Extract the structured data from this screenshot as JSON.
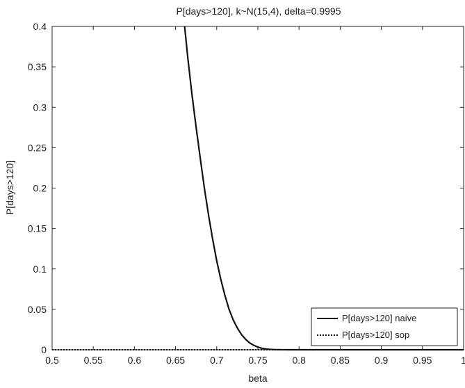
{
  "chart_data": {
    "type": "line",
    "title": "P[days>120], k~N(15,4), delta=0.9995",
    "xlabel": "beta",
    "ylabel": "P[days>120]",
    "xlim": [
      0.5,
      1.0
    ],
    "ylim": [
      0,
      0.4
    ],
    "x_ticks": [
      "0.5",
      "0.55",
      "0.6",
      "0.65",
      "0.7",
      "0.75",
      "0.8",
      "0.85",
      "0.9",
      "0.95",
      "1"
    ],
    "y_ticks": [
      "0",
      "0.05",
      "0.1",
      "0.15",
      "0.2",
      "0.25",
      "0.3",
      "0.35",
      "0.4"
    ],
    "grid": false,
    "legend_position": "bottom-right",
    "series": [
      {
        "name": "P[days>120] naive",
        "line_style": "solid",
        "color": "#111111",
        "x": [
          0.661,
          0.665,
          0.67,
          0.675,
          0.68,
          0.685,
          0.69,
          0.695,
          0.7,
          0.705,
          0.71,
          0.715,
          0.72,
          0.725,
          0.73,
          0.735,
          0.74,
          0.745,
          0.75,
          0.755,
          0.76,
          0.765,
          0.77,
          0.775,
          0.78,
          0.79,
          0.8,
          0.85,
          0.9,
          0.95,
          1.0
        ],
        "y": [
          0.4,
          0.36,
          0.315,
          0.275,
          0.237,
          0.2,
          0.167,
          0.137,
          0.11,
          0.087,
          0.067,
          0.05,
          0.037,
          0.027,
          0.019,
          0.013,
          0.0085,
          0.0055,
          0.0033,
          0.0018,
          0.001,
          0.0005,
          0.0002,
          0.0001,
          5e-05,
          0.0,
          0.0,
          0.0,
          0.0,
          0.0,
          0.0
        ]
      },
      {
        "name": "P[days>120] sop",
        "line_style": "dotted",
        "color": "#111111",
        "x": [
          0.5,
          0.6,
          0.7,
          0.8,
          0.9,
          1.0
        ],
        "y": [
          0.0,
          0.0,
          0.0,
          0.0,
          0.0,
          0.0
        ]
      }
    ]
  }
}
